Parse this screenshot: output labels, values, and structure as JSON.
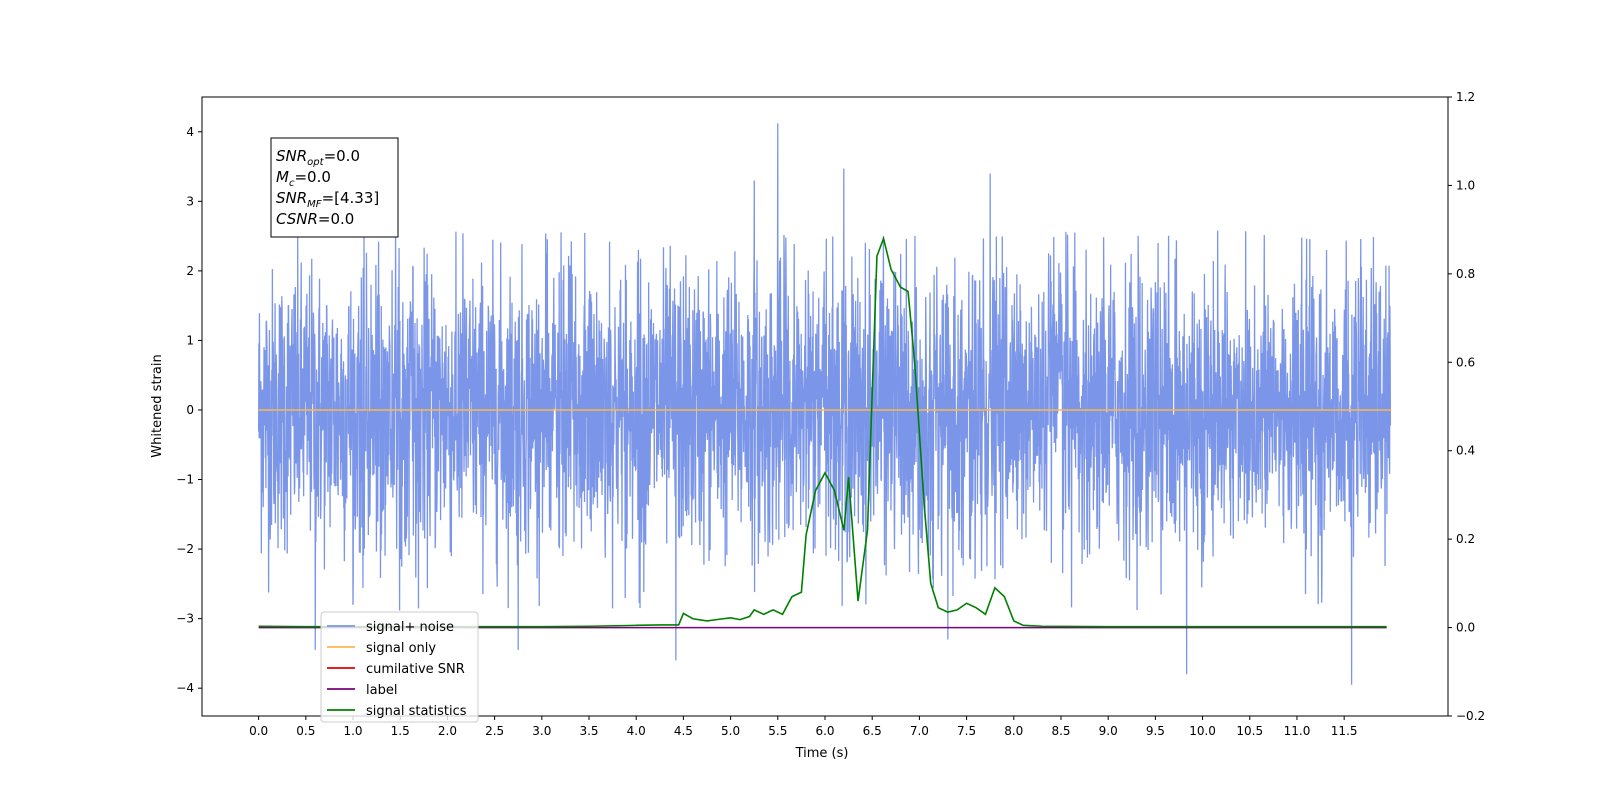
{
  "chart_data": {
    "type": "line",
    "xlabel": "Time (s)",
    "ylabel": "Whitened strain",
    "xlim": [
      -0.6,
      12.6
    ],
    "ylim_left": [
      -4.4,
      4.5
    ],
    "ylim_right": [
      -0.2,
      1.2
    ],
    "x_ticks": [
      "0.0",
      "0.5",
      "1.0",
      "1.5",
      "2.0",
      "2.5",
      "3.0",
      "3.5",
      "4.0",
      "4.5",
      "5.0",
      "5.5",
      "6.0",
      "6.5",
      "7.0",
      "7.5",
      "8.0",
      "8.5",
      "9.0",
      "9.5",
      "10.0",
      "10.5",
      "11.0",
      "11.5"
    ],
    "y_ticks_left": [
      "4",
      "3",
      "2",
      "1",
      "0",
      "−1",
      "−2",
      "−3",
      "−4"
    ],
    "y_ticks_right": [
      "1.2",
      "1.0",
      "0.8",
      "0.6",
      "0.4",
      "0.2",
      "0.0",
      "−0.2"
    ],
    "grid": false,
    "legend_placement": "lower-left",
    "annotation": {
      "lines": [
        {
          "sym": "SNR",
          "sub": "opt",
          "value": "=0.0"
        },
        {
          "sym": "M",
          "sub": "c",
          "value": "=0.0"
        },
        {
          "sym": "SNR",
          "sub": "MF",
          "value": "=[4.33]"
        },
        {
          "sym": "CSNR",
          "sub": "",
          "value": "=0.0"
        }
      ]
    },
    "series": [
      {
        "name": "signal+ noise",
        "color": "#7b96e8",
        "axis": "left",
        "x_range": [
          0.0,
          11.99
        ],
        "amplitude_range": [
          -4.0,
          4.12
        ],
        "peaks": [
          {
            "x": 5.5,
            "y": 4.12
          },
          {
            "x": 6.2,
            "y": 3.47
          },
          {
            "x": 5.25,
            "y": 3.3
          },
          {
            "x": 7.75,
            "y": 3.4
          },
          {
            "x": 11.58,
            "y": -3.95
          },
          {
            "x": 9.83,
            "y": -3.8
          },
          {
            "x": 4.42,
            "y": -3.6
          },
          {
            "x": 0.6,
            "y": -3.45
          },
          {
            "x": 2.75,
            "y": -3.45
          },
          {
            "x": 7.3,
            "y": -3.3
          }
        ]
      },
      {
        "name": "signal only",
        "color": "#ffb74d",
        "axis": "left",
        "x": [
          0.0,
          12.0
        ],
        "y": [
          0.0,
          0.0
        ]
      },
      {
        "name": "cumilative SNR",
        "color": "#e00000",
        "axis": "right",
        "x": [],
        "y": []
      },
      {
        "name": "label",
        "color": "#7b007b",
        "axis": "right",
        "x": [
          0.0,
          11.95
        ],
        "y": [
          0.0,
          0.0
        ]
      },
      {
        "name": "signal statistics",
        "color": "#008000",
        "axis": "right",
        "x": [
          0.0,
          0.5,
          1.0,
          1.5,
          2.0,
          2.5,
          3.0,
          3.5,
          4.0,
          4.25,
          4.45,
          4.5,
          4.6,
          4.75,
          4.85,
          5.0,
          5.1,
          5.2,
          5.25,
          5.35,
          5.45,
          5.55,
          5.65,
          5.75,
          5.8,
          5.9,
          6.0,
          6.1,
          6.2,
          6.25,
          6.35,
          6.45,
          6.55,
          6.62,
          6.7,
          6.8,
          6.88,
          6.95,
          7.05,
          7.12,
          7.2,
          7.3,
          7.4,
          7.5,
          7.6,
          7.7,
          7.8,
          7.9,
          8.0,
          8.1,
          8.3,
          9.0,
          10.0,
          11.0,
          11.95
        ],
        "y": [
          0.003,
          0.002,
          0.002,
          0.002,
          0.002,
          0.002,
          0.002,
          0.003,
          0.005,
          0.006,
          0.006,
          0.032,
          0.02,
          0.015,
          0.018,
          0.022,
          0.018,
          0.025,
          0.04,
          0.03,
          0.04,
          0.03,
          0.07,
          0.08,
          0.21,
          0.31,
          0.35,
          0.31,
          0.22,
          0.34,
          0.06,
          0.22,
          0.84,
          0.88,
          0.81,
          0.77,
          0.76,
          0.6,
          0.28,
          0.1,
          0.045,
          0.035,
          0.04,
          0.055,
          0.045,
          0.03,
          0.09,
          0.07,
          0.015,
          0.005,
          0.003,
          0.002,
          0.002,
          0.002,
          0.002
        ]
      }
    ]
  }
}
